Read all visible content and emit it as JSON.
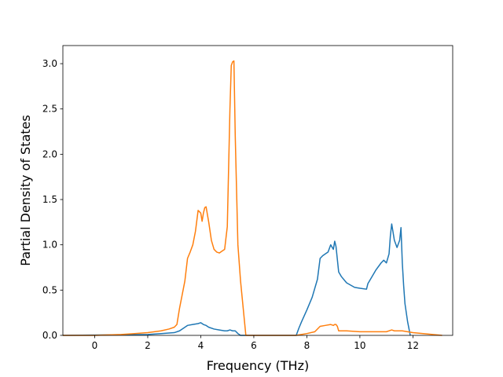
{
  "chart_data": {
    "type": "line",
    "title": "",
    "xlabel": "Frequency (THz)",
    "ylabel": "Partial Density of States",
    "xlim": [
      -1.2,
      13.5
    ],
    "ylim": [
      0.0,
      3.2
    ],
    "xticks": [
      0,
      2,
      4,
      6,
      8,
      10,
      12
    ],
    "yticks": [
      0.0,
      0.5,
      1.0,
      1.5,
      2.0,
      2.5,
      3.0
    ],
    "xtick_labels": [
      "0",
      "2",
      "4",
      "6",
      "8",
      "10",
      "12"
    ],
    "ytick_labels": [
      "0.0",
      "0.5",
      "1.0",
      "1.5",
      "2.0",
      "2.5",
      "3.0"
    ],
    "grid": false,
    "legend": null,
    "series": [
      {
        "color": "#1f77b4",
        "x": [
          -1.2,
          2.0,
          2.5,
          3.0,
          3.2,
          3.5,
          3.7,
          3.9,
          4.0,
          4.1,
          4.2,
          4.3,
          4.5,
          4.7,
          4.9,
          5.0,
          5.1,
          5.2,
          5.3,
          5.4,
          5.5,
          7.6,
          7.7,
          7.8,
          8.0,
          8.2,
          8.4,
          8.5,
          8.6,
          8.8,
          8.9,
          9.0,
          9.05,
          9.1,
          9.2,
          9.3,
          9.5,
          9.8,
          10.0,
          10.25,
          10.3,
          10.4,
          10.5,
          10.6,
          10.8,
          10.9,
          11.0,
          11.1,
          11.15,
          11.2,
          11.3,
          11.4,
          11.5,
          11.55,
          11.6,
          11.65,
          11.7,
          11.8,
          11.9
        ],
        "values": [
          0.0,
          0.01,
          0.02,
          0.03,
          0.05,
          0.11,
          0.12,
          0.13,
          0.14,
          0.12,
          0.11,
          0.09,
          0.07,
          0.06,
          0.05,
          0.05,
          0.06,
          0.05,
          0.05,
          0.02,
          0.0,
          0.0,
          0.08,
          0.15,
          0.28,
          0.42,
          0.62,
          0.85,
          0.88,
          0.92,
          1.0,
          0.95,
          1.04,
          0.98,
          0.7,
          0.65,
          0.58,
          0.53,
          0.52,
          0.51,
          0.57,
          0.62,
          0.67,
          0.72,
          0.8,
          0.83,
          0.8,
          0.9,
          1.1,
          1.23,
          1.05,
          0.97,
          1.05,
          1.19,
          0.8,
          0.55,
          0.35,
          0.15,
          0.0
        ]
      },
      {
        "color": "#ff7f0e",
        "x": [
          -1.2,
          0.0,
          1.0,
          1.5,
          2.0,
          2.5,
          2.8,
          3.0,
          3.1,
          3.2,
          3.3,
          3.4,
          3.5,
          3.6,
          3.7,
          3.8,
          3.9,
          4.0,
          4.05,
          4.1,
          4.15,
          4.2,
          4.3,
          4.4,
          4.5,
          4.6,
          4.7,
          4.8,
          4.9,
          5.0,
          5.1,
          5.15,
          5.2,
          5.25,
          5.3,
          5.4,
          5.5,
          5.6,
          5.7,
          7.6,
          8.0,
          8.3,
          8.5,
          8.7,
          8.9,
          9.0,
          9.05,
          9.1,
          9.15,
          9.2,
          9.5,
          10.0,
          10.5,
          10.8,
          11.0,
          11.2,
          11.3,
          11.4,
          11.6,
          12.0,
          13.1
        ],
        "values": [
          0.0,
          0.0,
          0.01,
          0.02,
          0.03,
          0.05,
          0.07,
          0.09,
          0.12,
          0.3,
          0.45,
          0.6,
          0.85,
          0.92,
          1.0,
          1.15,
          1.38,
          1.35,
          1.26,
          1.35,
          1.41,
          1.42,
          1.25,
          1.05,
          0.95,
          0.92,
          0.91,
          0.93,
          0.95,
          1.2,
          2.5,
          2.98,
          3.02,
          3.03,
          2.2,
          1.0,
          0.6,
          0.3,
          0.0,
          0.0,
          0.02,
          0.04,
          0.1,
          0.11,
          0.12,
          0.11,
          0.12,
          0.12,
          0.1,
          0.05,
          0.05,
          0.04,
          0.04,
          0.04,
          0.04,
          0.06,
          0.05,
          0.05,
          0.05,
          0.03,
          0.0
        ]
      }
    ]
  }
}
